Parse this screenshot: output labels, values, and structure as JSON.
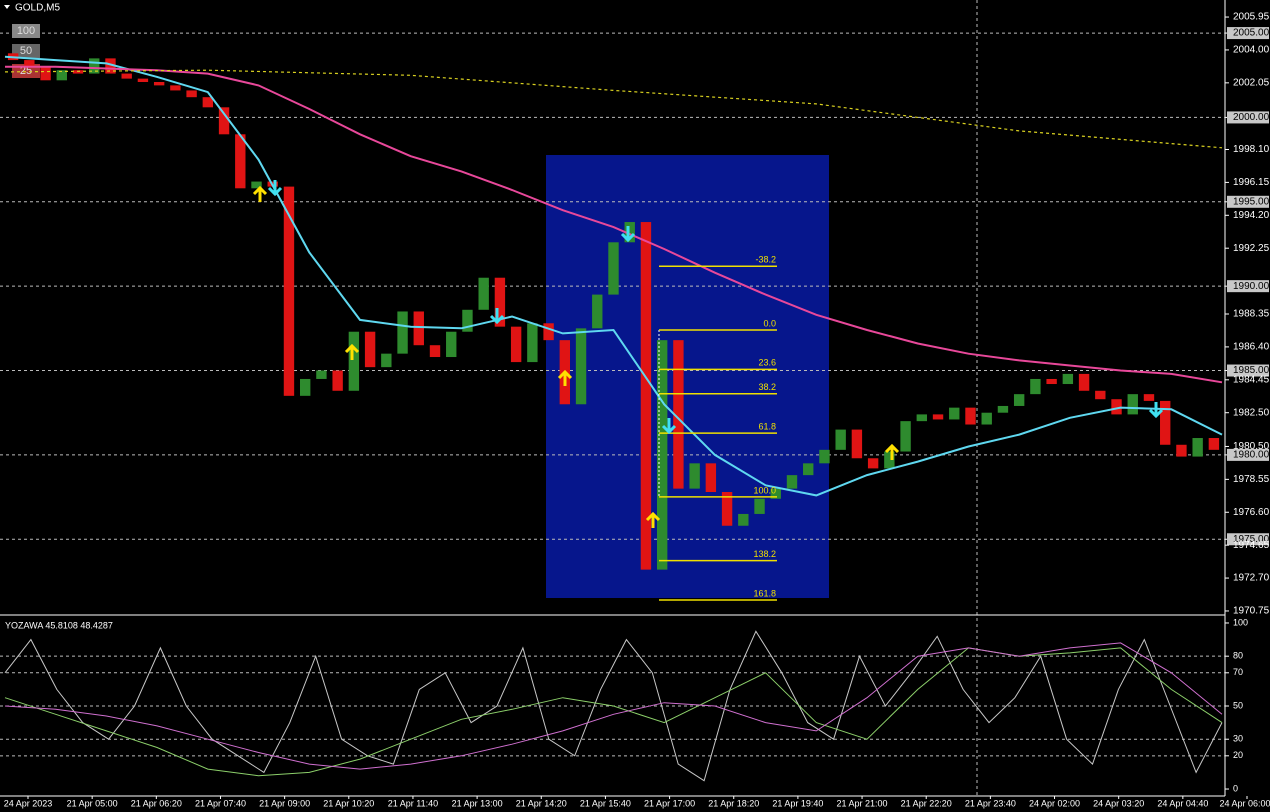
{
  "chart_data": [
    {
      "type": "candlestick",
      "title": "GOLD,M5",
      "scale_buttons": [
        "100",
        "50",
        "25"
      ],
      "ylim": [
        1970.57,
        2006.96
      ],
      "yticks": [
        2005.95,
        {
          "value": 2005,
          "label": "2005.00"
        },
        {
          "value": 2004,
          "label": "2004.00"
        },
        2002.05,
        {
          "value": 2000,
          "label": "2000.00"
        },
        {
          "value": 1998.1,
          "label": "1998.10"
        },
        1996.15,
        {
          "value": 1995,
          "label": "1995.00"
        },
        {
          "value": 1994.2,
          "label": "1994.20"
        },
        1992.25,
        {
          "value": 1990,
          "label": "1990.00"
        },
        1988.35,
        {
          "value": 1986.4,
          "label": "1986.40"
        },
        {
          "value": 1985,
          "label": "1985.00"
        },
        1984.45,
        {
          "value": 1982.5,
          "label": "1982.50"
        },
        {
          "value": 1980.5,
          "label": "1980.50"
        },
        {
          "value": 1980,
          "label": "1980.00"
        },
        1978.55,
        {
          "value": 1976.6,
          "label": "1976.60"
        },
        {
          "value": 1975,
          "label": "1975.00"
        },
        1974.65,
        {
          "value": 1972.7,
          "label": "1972.70"
        },
        1970.75
      ],
      "up_color": "#2e8b2e",
      "down_color": "#e01414",
      "open": [
        2003.8,
        2003.4,
        2003.0,
        2002.2,
        2002.8,
        2002.6,
        2003.5,
        2002.6,
        2002.3,
        2002.1,
        2001.9,
        2001.6,
        2001.2,
        2000.6,
        1999.0,
        1995.8,
        1996.2,
        1995.9,
        1983.5,
        1984.5,
        1985.0,
        1983.8,
        1987.3,
        1985.2,
        1986.0,
        1988.5,
        1986.5,
        1985.8,
        1987.3,
        1988.6,
        1990.5,
        1987.6,
        1985.5,
        1987.8,
        1986.8,
        1983.0,
        1987.5,
        1989.5,
        1992.6,
        1993.8,
        1973.2,
        1986.8,
        1978.0,
        1979.5,
        1977.8,
        1975.8,
        1976.5,
        1977.4,
        1978.0,
        1978.8,
        1979.5,
        1980.3,
        1981.5,
        1979.8,
        1979.2,
        1980.2,
        1982.0,
        1982.4,
        1982.1,
        1982.8,
        1981.8,
        1982.5,
        1982.9,
        1983.6,
        1984.5,
        1984.2,
        1984.8,
        1983.8,
        1983.3,
        1982.4,
        1983.6,
        1983.2,
        1980.6,
        1979.9,
        1981.0
      ],
      "close": [
        2003.4,
        2003.0,
        2002.2,
        2002.8,
        2002.6,
        2003.5,
        2002.6,
        2002.3,
        2002.1,
        2001.9,
        2001.6,
        2001.2,
        2000.6,
        1999.0,
        1995.8,
        1996.2,
        1995.9,
        1983.5,
        1984.5,
        1985.0,
        1983.8,
        1987.3,
        1985.2,
        1986.0,
        1988.5,
        1986.5,
        1985.8,
        1987.3,
        1988.6,
        1990.5,
        1987.6,
        1985.5,
        1987.8,
        1986.8,
        1983.0,
        1987.5,
        1989.5,
        1992.6,
        1993.8,
        1973.2,
        1986.8,
        1978.0,
        1979.5,
        1977.8,
        1975.8,
        1976.5,
        1977.4,
        1978.0,
        1978.8,
        1979.5,
        1980.3,
        1981.5,
        1979.8,
        1979.2,
        1980.2,
        1982.0,
        1982.4,
        1982.1,
        1982.8,
        1981.8,
        1982.5,
        1982.9,
        1983.6,
        1984.5,
        1984.2,
        1984.8,
        1983.8,
        1983.3,
        1982.4,
        1983.6,
        1983.2,
        1980.6,
        1979.9,
        1981.0,
        1980.3
      ],
      "series": [
        {
          "color": "#5fd8f0",
          "values": [
            2003.6,
            2003.4,
            2003.2,
            2002.4,
            2001.5,
            1997.5,
            1992.0,
            1988.0,
            1987.6,
            1987.5,
            1988.2,
            1987.2,
            1987.4,
            1983.0,
            1980.0,
            1978.2,
            1977.6,
            1978.8,
            1979.6,
            1980.5,
            1981.2,
            1982.2,
            1982.8,
            1982.7,
            1981.2
          ]
        },
        {
          "color": "#e8489a",
          "values": [
            2003.0,
            2003.0,
            2002.9,
            2002.8,
            2002.6,
            2001.9,
            2000.5,
            1999.0,
            1997.7,
            1996.8,
            1995.7,
            1994.5,
            1993.5,
            1992.2,
            1990.8,
            1989.5,
            1988.3,
            1987.4,
            1986.6,
            1986.0,
            1985.6,
            1985.3,
            1985.0,
            1984.8,
            1984.3
          ]
        },
        {
          "color": "#d8d020",
          "values": [
            2002.7,
            2002.8,
            2002.5,
            2001.6,
            2000.8,
            1999.2,
            1998.2
          ]
        }
      ],
      "fib_color": "#f0e000",
      "fibonacci": [
        {
          "label": "-38.2",
          "price": 1991.18
        },
        {
          "label": "0.0",
          "price": 1987.4
        },
        {
          "label": "23.6",
          "price": 1985.07
        },
        {
          "label": "38.2",
          "price": 1983.62
        },
        {
          "label": "61.8",
          "price": 1981.29
        },
        {
          "label": "100.0",
          "price": 1977.51
        },
        {
          "label": "138.2",
          "price": 1973.73
        },
        {
          "label": "161.8",
          "price": 1971.4
        }
      ]
    },
    {
      "type": "line",
      "title": "YOZAWA 45.8108 48.4287",
      "ylim": [
        -4.2,
        103.6
      ],
      "yticks": [
        100,
        80,
        70,
        50,
        30,
        20,
        0
      ],
      "grid": true,
      "xtick_labels": [
        "24 Apr 2023",
        "21 Apr 05:00",
        "21 Apr 06:20",
        "21 Apr 07:40",
        "21 Apr 09:00",
        "21 Apr 10:20",
        "21 Apr 11:40",
        "21 Apr 13:00",
        "21 Apr 14:20",
        "21 Apr 15:40",
        "21 Apr 17:00",
        "21 Apr 18:20",
        "21 Apr 19:40",
        "21 Apr 21:00",
        "21 Apr 22:20",
        "21 Apr 23:40",
        "24 Apr 02:00",
        "24 Apr 03:20",
        "24 Apr 04:40",
        "24 Apr 06:00"
      ],
      "series": [
        {
          "color": "#c8c8c8",
          "values": [
            70,
            90,
            60,
            40,
            30,
            50,
            85,
            50,
            30,
            20,
            10,
            40,
            80,
            30,
            20,
            15,
            60,
            70,
            40,
            50,
            85,
            30,
            20,
            60,
            90,
            70,
            15,
            5,
            60,
            95,
            70,
            40,
            30,
            80,
            50,
            70,
            92,
            60,
            40,
            55,
            80,
            30,
            15,
            60,
            90,
            50,
            10,
            40
          ]
        },
        {
          "color": "#8ccf6a",
          "values": [
            55,
            45,
            35,
            25,
            12,
            8,
            10,
            18,
            30,
            42,
            48,
            55,
            50,
            40,
            55,
            70,
            40,
            30,
            60,
            85,
            80,
            82,
            85,
            60,
            40
          ]
        },
        {
          "color": "#d070d0",
          "values": [
            50,
            48,
            44,
            38,
            30,
            22,
            15,
            12,
            15,
            20,
            27,
            35,
            45,
            52,
            50,
            40,
            35,
            55,
            80,
            85,
            80,
            85,
            88,
            70,
            45
          ]
        }
      ]
    }
  ]
}
